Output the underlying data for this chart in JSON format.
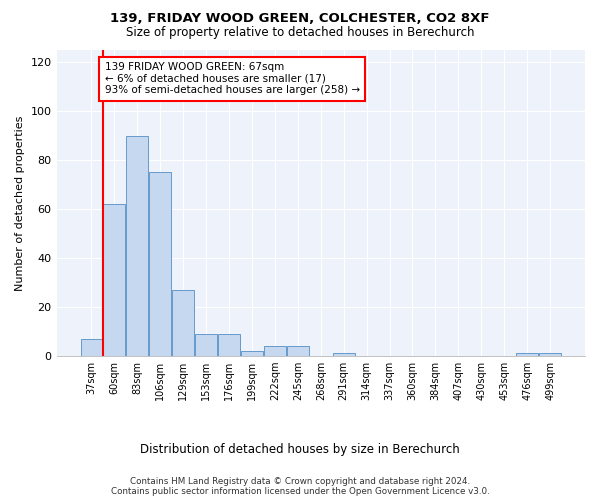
{
  "title": "139, FRIDAY WOOD GREEN, COLCHESTER, CO2 8XF",
  "subtitle": "Size of property relative to detached houses in Berechurch",
  "xlabel_bottom": "Distribution of detached houses by size in Berechurch",
  "ylabel": "Number of detached properties",
  "categories": [
    "37sqm",
    "60sqm",
    "83sqm",
    "106sqm",
    "129sqm",
    "153sqm",
    "176sqm",
    "199sqm",
    "222sqm",
    "245sqm",
    "268sqm",
    "291sqm",
    "314sqm",
    "337sqm",
    "360sqm",
    "384sqm",
    "407sqm",
    "430sqm",
    "453sqm",
    "476sqm",
    "499sqm"
  ],
  "values": [
    7,
    62,
    90,
    75,
    27,
    9,
    9,
    2,
    4,
    4,
    0,
    1,
    0,
    0,
    0,
    0,
    0,
    0,
    0,
    1,
    1
  ],
  "bar_color": "#c5d8f0",
  "bar_edge_color": "#6699cc",
  "ylim": [
    0,
    125
  ],
  "yticks": [
    0,
    20,
    40,
    60,
    80,
    100,
    120
  ],
  "red_line_bin": 1,
  "annotation_text": "139 FRIDAY WOOD GREEN: 67sqm\n← 6% of detached houses are smaller (17)\n93% of semi-detached houses are larger (258) →",
  "annotation_box_color": "white",
  "annotation_box_edge_color": "red",
  "footer_line1": "Contains HM Land Registry data © Crown copyright and database right 2024.",
  "footer_line2": "Contains public sector information licensed under the Open Government Licence v3.0.",
  "background_color": "#eef2fb"
}
